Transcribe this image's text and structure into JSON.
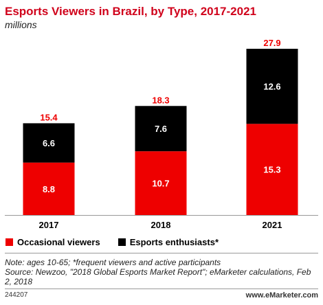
{
  "header": {
    "title": "Esports Viewers in Brazil, by Type, 2017-2021",
    "subtitle": "millions"
  },
  "colors": {
    "occasional": "#ee0000",
    "enthusiasts": "#000000",
    "total_label": "#ee0000",
    "axis": "#999999"
  },
  "chart_data": {
    "type": "bar",
    "stacked": true,
    "categories": [
      "2017",
      "2018",
      "2021"
    ],
    "series": [
      {
        "name": "Occasional viewers",
        "values": [
          8.8,
          10.7,
          15.3
        ]
      },
      {
        "name": "Esports enthusiasts*",
        "values": [
          6.6,
          7.6,
          12.6
        ]
      }
    ],
    "totals": [
      15.4,
      18.3,
      27.9
    ],
    "title": "Esports Viewers in Brazil, by Type, 2017-2021",
    "subtitle": "millions",
    "ylim": [
      0,
      27.9
    ],
    "grid": false,
    "legend": "bottom-left"
  },
  "legend": {
    "items": [
      {
        "label": "Occasional viewers"
      },
      {
        "label": "Esports enthusiasts*"
      }
    ]
  },
  "notes": {
    "line1": "Note: ages 10-65; *frequent viewers and active participants",
    "line2": "Source: Newzoo, \"2018 Global Esports Market Report\"; eMarketer calculations, Feb 2, 2018"
  },
  "footer": {
    "id": "244207",
    "brand": "www.eMarketer.com"
  }
}
